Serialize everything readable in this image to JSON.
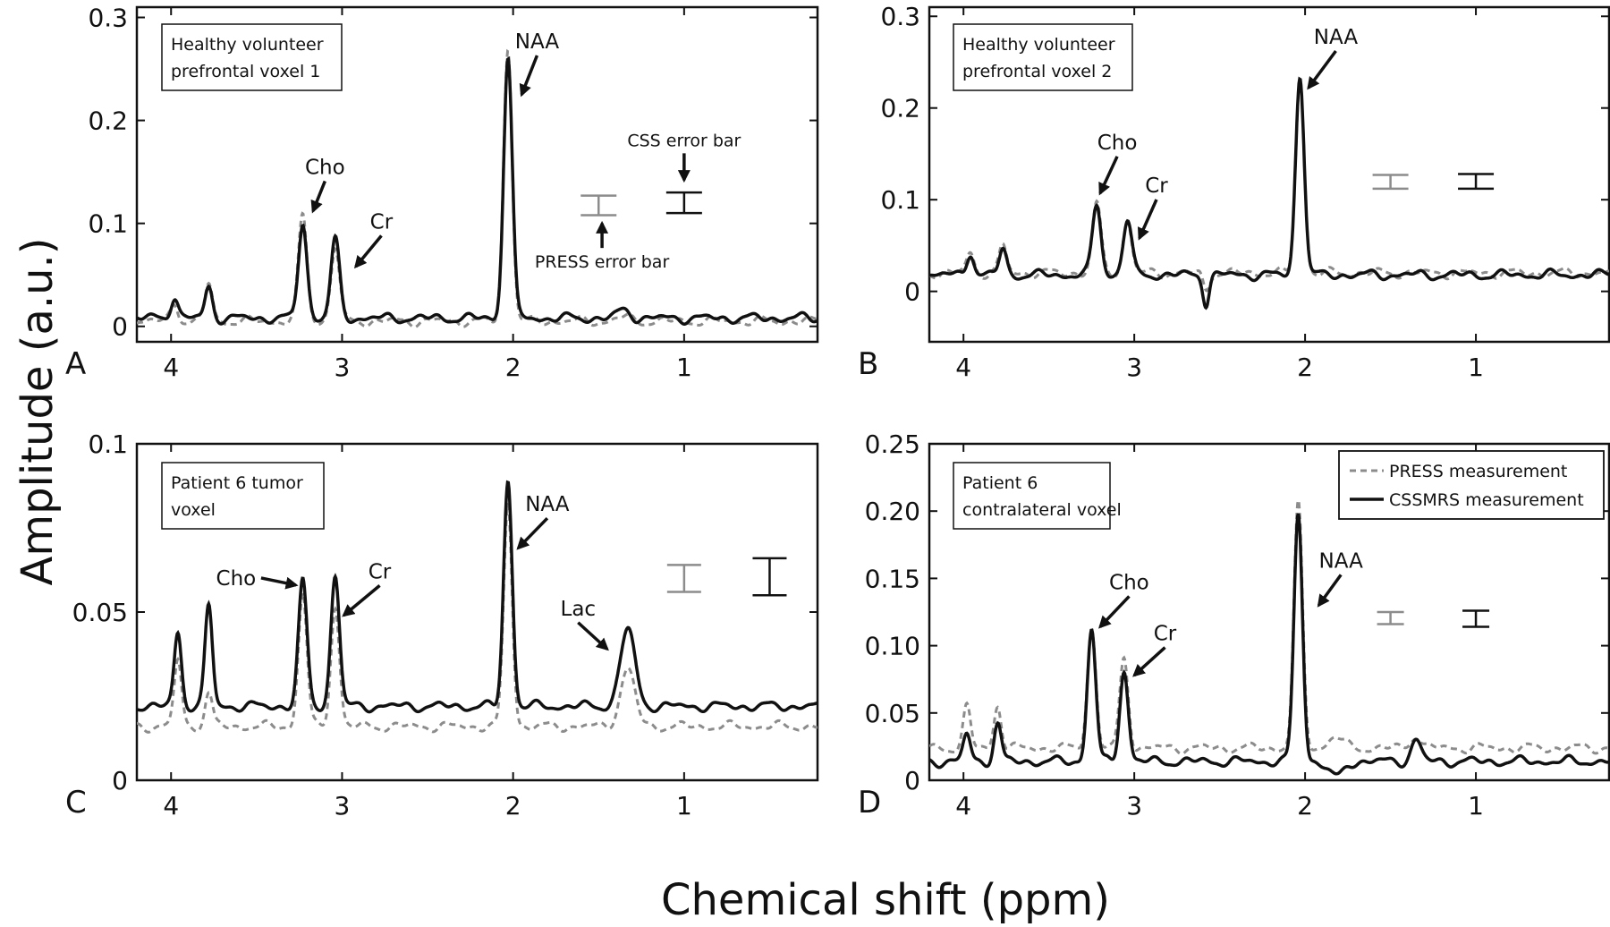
{
  "figure": {
    "ylabel": "Amplitude (a.u.)",
    "xlabel": "Chemical shift (ppm)"
  },
  "legend": {
    "press": "PRESS measurement",
    "css": "CSSMRS measurement"
  },
  "colors": {
    "press": "#8c8c8c",
    "css": "#111111",
    "frame": "#111111"
  },
  "chart_data": [
    {
      "type": "line",
      "panel": "A",
      "box_lines": [
        "Healthy volunteer",
        "prefrontal voxel 1"
      ],
      "x_reversed": true,
      "xlim": [
        4.2,
        0.22
      ],
      "ylim": [
        -0.015,
        0.31
      ],
      "xticks": [
        4,
        3,
        2,
        1
      ],
      "xtick_labels": [
        "4",
        "3",
        "2",
        "1"
      ],
      "yticks": [
        0,
        0.1,
        0.2,
        0.3
      ],
      "ytick_labels": [
        "0",
        "0.1",
        "0.2",
        "0.3"
      ],
      "baseline_css": 0.008,
      "baseline_press": 0.005,
      "peaks": [
        {
          "ppm": 3.98,
          "css": 0.022,
          "press": 0.018,
          "w": 0.03
        },
        {
          "ppm": 3.78,
          "css": 0.03,
          "press": 0.037,
          "w": 0.03
        },
        {
          "ppm": 3.23,
          "css": 0.093,
          "press": 0.103,
          "w": 0.035
        },
        {
          "ppm": 3.04,
          "css": 0.076,
          "press": 0.072,
          "w": 0.035
        },
        {
          "ppm": 2.03,
          "css": 0.255,
          "press": 0.265,
          "w": 0.035
        },
        {
          "ppm": 1.35,
          "css": 0.008,
          "press": 0.004,
          "w": 0.05
        }
      ],
      "annotations": [
        {
          "text": "NAA",
          "x": 1.86,
          "y": 0.27,
          "tx": 1.95,
          "ty": 0.225,
          "size": "l"
        },
        {
          "text": "Cho",
          "x": 3.1,
          "y": 0.148,
          "tx": 3.17,
          "ty": 0.112,
          "size": "l"
        },
        {
          "text": "Cr",
          "x": 2.77,
          "y": 0.095,
          "tx": 2.92,
          "ty": 0.058,
          "size": "l"
        },
        {
          "text": "CSS error bar",
          "x": 1.0,
          "y": 0.175,
          "tx": 1.0,
          "ty": 0.142,
          "size": "s"
        },
        {
          "text": "PRESS error bar",
          "x": 1.48,
          "y": 0.057,
          "tx": 1.48,
          "ty": 0.1,
          "size": "s"
        }
      ],
      "error_bars": [
        {
          "series": "press",
          "ppm": 1.5,
          "low": 0.108,
          "high": 0.127
        },
        {
          "series": "css",
          "ppm": 1.0,
          "low": 0.11,
          "high": 0.13
        }
      ]
    },
    {
      "type": "line",
      "panel": "B",
      "box_lines": [
        "Healthy volunteer",
        "prefrontal voxel 2"
      ],
      "x_reversed": true,
      "xlim": [
        4.2,
        0.22
      ],
      "ylim": [
        -0.055,
        0.31
      ],
      "xticks": [
        4,
        3,
        2,
        1
      ],
      "xtick_labels": [
        "4",
        "3",
        "2",
        "1"
      ],
      "yticks": [
        0,
        0.1,
        0.2,
        0.3
      ],
      "ytick_labels": [
        "0",
        "0.1",
        "0.2",
        "0.3"
      ],
      "baseline_css": 0.018,
      "baseline_press": 0.02,
      "peaks": [
        {
          "ppm": 3.96,
          "css": 0.025,
          "press": 0.022,
          "w": 0.03
        },
        {
          "ppm": 3.77,
          "css": 0.028,
          "press": 0.03,
          "w": 0.03
        },
        {
          "ppm": 3.22,
          "css": 0.077,
          "press": 0.075,
          "w": 0.035
        },
        {
          "ppm": 3.04,
          "css": 0.06,
          "press": 0.057,
          "w": 0.035
        },
        {
          "ppm": 2.58,
          "css": -0.03,
          "press": -0.018,
          "w": 0.025
        },
        {
          "ppm": 2.03,
          "css": 0.218,
          "press": 0.212,
          "w": 0.035
        }
      ],
      "annotations": [
        {
          "text": "NAA",
          "x": 1.82,
          "y": 0.27,
          "tx": 1.98,
          "ty": 0.222,
          "size": "l"
        },
        {
          "text": "Cho",
          "x": 3.1,
          "y": 0.155,
          "tx": 3.2,
          "ty": 0.107,
          "size": "l"
        },
        {
          "text": "Cr",
          "x": 2.87,
          "y": 0.108,
          "tx": 2.97,
          "ty": 0.058,
          "size": "l"
        },
        {
          "text": "",
          "x": 1.5,
          "y": 0.12,
          "tx": 1.5,
          "ty": 0.12,
          "size": "s"
        }
      ],
      "error_bars": [
        {
          "series": "press",
          "ppm": 1.5,
          "low": 0.112,
          "high": 0.127
        },
        {
          "series": "css",
          "ppm": 1.0,
          "low": 0.112,
          "high": 0.128
        }
      ]
    },
    {
      "type": "line",
      "panel": "C",
      "box_lines": [
        "Patient 6 tumor",
        "voxel"
      ],
      "x_reversed": true,
      "xlim": [
        4.2,
        0.22
      ],
      "ylim": [
        0,
        0.1
      ],
      "xticks": [
        4,
        3,
        2,
        1
      ],
      "xtick_labels": [
        "4",
        "3",
        "2",
        "1"
      ],
      "yticks": [
        0,
        0.05,
        0.1
      ],
      "ytick_labels": [
        "0",
        "0.05",
        "0.1"
      ],
      "baseline_css": 0.022,
      "baseline_press": 0.016,
      "peaks": [
        {
          "ppm": 3.96,
          "css": 0.022,
          "press": 0.02,
          "w": 0.03
        },
        {
          "ppm": 3.78,
          "css": 0.03,
          "press": 0.01,
          "w": 0.03
        },
        {
          "ppm": 3.23,
          "css": 0.037,
          "press": 0.04,
          "w": 0.035
        },
        {
          "ppm": 3.04,
          "css": 0.039,
          "press": 0.036,
          "w": 0.035
        },
        {
          "ppm": 2.03,
          "css": 0.067,
          "press": 0.066,
          "w": 0.035
        },
        {
          "ppm": 1.33,
          "css": 0.023,
          "press": 0.017,
          "w": 0.06
        }
      ],
      "annotations": [
        {
          "text": "NAA",
          "x": 1.8,
          "y": 0.08,
          "tx": 1.97,
          "ty": 0.069,
          "size": "l"
        },
        {
          "text": "Cho",
          "x": 3.62,
          "y": 0.058,
          "tx": 3.27,
          "ty": 0.058,
          "size": "l"
        },
        {
          "text": "Cr",
          "x": 2.78,
          "y": 0.06,
          "tx": 2.99,
          "ty": 0.049,
          "size": "l"
        },
        {
          "text": "Lac",
          "x": 1.62,
          "y": 0.049,
          "tx": 1.45,
          "ty": 0.039,
          "size": "l"
        }
      ],
      "error_bars": [
        {
          "series": "press",
          "ppm": 1.0,
          "low": 0.056,
          "high": 0.064
        },
        {
          "series": "css",
          "ppm": 0.5,
          "low": 0.055,
          "high": 0.066
        }
      ]
    },
    {
      "type": "line",
      "panel": "D",
      "box_lines": [
        "Patient 6",
        "contralateral voxel"
      ],
      "x_reversed": true,
      "xlim": [
        4.2,
        0.22
      ],
      "ylim": [
        0,
        0.25
      ],
      "xticks": [
        4,
        3,
        2,
        1
      ],
      "xtick_labels": [
        "4",
        "3",
        "2",
        "1"
      ],
      "yticks": [
        0,
        0.05,
        0.1,
        0.15,
        0.2,
        0.25
      ],
      "ytick_labels": [
        "0",
        "0.05",
        "0.10",
        "0.15",
        "0.20",
        "0.25"
      ],
      "baseline_css": 0.014,
      "baseline_press": 0.024,
      "peaks": [
        {
          "ppm": 3.98,
          "css": 0.02,
          "press": 0.03,
          "w": 0.03
        },
        {
          "ppm": 3.8,
          "css": 0.028,
          "press": 0.032,
          "w": 0.03
        },
        {
          "ppm": 3.25,
          "css": 0.098,
          "press": 0.088,
          "w": 0.035
        },
        {
          "ppm": 3.06,
          "css": 0.068,
          "press": 0.066,
          "w": 0.035
        },
        {
          "ppm": 2.04,
          "css": 0.184,
          "press": 0.18,
          "w": 0.035
        },
        {
          "ppm": 1.82,
          "css": -0.012,
          "press": 0.008,
          "w": 0.06
        },
        {
          "ppm": 1.35,
          "css": 0.016,
          "press": 0.01,
          "w": 0.04
        }
      ],
      "annotations": [
        {
          "text": "NAA",
          "x": 1.79,
          "y": 0.158,
          "tx": 1.92,
          "ty": 0.13,
          "size": "l"
        },
        {
          "text": "Cho",
          "x": 3.03,
          "y": 0.142,
          "tx": 3.2,
          "ty": 0.114,
          "size": "l"
        },
        {
          "text": "Cr",
          "x": 2.82,
          "y": 0.104,
          "tx": 3.0,
          "ty": 0.078,
          "size": "l"
        }
      ],
      "error_bars": [
        {
          "series": "press",
          "ppm": 1.5,
          "low": 0.116,
          "high": 0.125
        },
        {
          "series": "css",
          "ppm": 1.0,
          "low": 0.114,
          "high": 0.126
        }
      ],
      "legend": {
        "placement": "top-right"
      }
    }
  ]
}
